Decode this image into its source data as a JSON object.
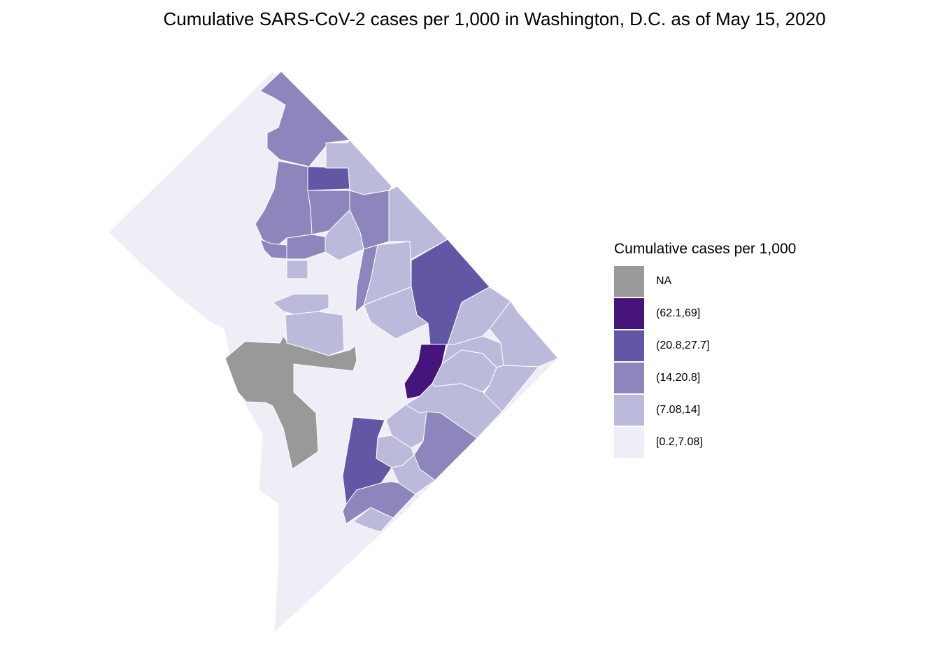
{
  "title": "Cumulative SARS-CoV-2 cases per 1,000 in Washington, D.C. as of May 15, 2020",
  "legend": {
    "title": "Cumulative cases per 1,000",
    "items": [
      {
        "label": "NA",
        "color": "#999999"
      },
      {
        "label": "(62.1,69]",
        "color": "#45157b"
      },
      {
        "label": "(20.8,27.7]",
        "color": "#6257a4"
      },
      {
        "label": "(14,20.8]",
        "color": "#8c86bd"
      },
      {
        "label": "(7.08,14]",
        "color": "#bcbadb"
      },
      {
        "label": "[0.2,7.08]",
        "color": "#efedf5"
      }
    ]
  }
}
